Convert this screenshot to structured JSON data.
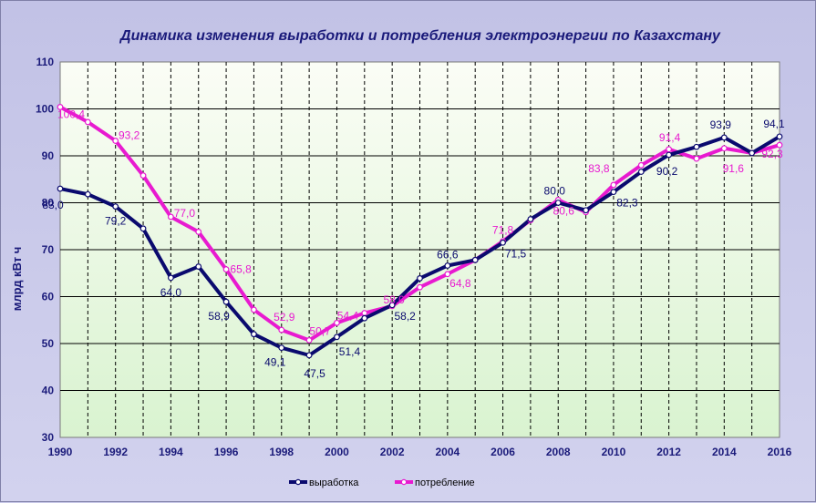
{
  "chart_data": {
    "type": "line",
    "title": "Динамика изменения выработки и потребления электроэнергии по  Казахстану",
    "ylabel": "млрд кВт ч",
    "xlabel": "",
    "ylim": [
      30,
      110
    ],
    "yticks": [
      30,
      40,
      50,
      60,
      70,
      80,
      90,
      100,
      110
    ],
    "xticks": [
      1990,
      1992,
      1994,
      1996,
      1998,
      2000,
      2002,
      2004,
      2006,
      2008,
      2010,
      2012,
      2014,
      2016
    ],
    "grid": true,
    "legend": "bottom",
    "x": [
      1990,
      1991,
      1992,
      1993,
      1994,
      1995,
      1996,
      1997,
      1998,
      1999,
      2000,
      2001,
      2002,
      2003,
      2004,
      2005,
      2006,
      2007,
      2008,
      2009,
      2010,
      2011,
      2012,
      2013,
      2014,
      2015,
      2016
    ],
    "series": [
      {
        "name": "выработка",
        "color": "#0a0a6e",
        "values": [
          83.0,
          81.8,
          79.2,
          74.5,
          64.0,
          66.4,
          58.9,
          52.0,
          49.1,
          47.5,
          51.4,
          55.4,
          58.2,
          63.9,
          66.6,
          67.8,
          71.5,
          76.5,
          80.0,
          78.4,
          82.3,
          86.6,
          90.2,
          91.9,
          93.9,
          90.6,
          94.1
        ]
      },
      {
        "name": "потребление",
        "color": "#e81ad0",
        "values": [
          100.4,
          97.2,
          93.2,
          85.8,
          77.0,
          73.8,
          65.8,
          57.2,
          52.9,
          50.7,
          54.4,
          56.5,
          58.0,
          62.0,
          64.8,
          67.8,
          71.8,
          76.3,
          80.6,
          78.0,
          83.8,
          88.0,
          91.4,
          89.4,
          91.6,
          90.6,
          92.3
        ]
      }
    ],
    "data_labels": [
      {
        "series": 0,
        "x": 1990,
        "text": "83,0"
      },
      {
        "series": 0,
        "x": 1992,
        "text": "79,2"
      },
      {
        "series": 0,
        "x": 1994,
        "text": "64,0"
      },
      {
        "series": 0,
        "x": 1996,
        "text": "58,9"
      },
      {
        "series": 0,
        "x": 1998,
        "text": "49,1"
      },
      {
        "series": 0,
        "x": 1999,
        "text": "47,5"
      },
      {
        "series": 0,
        "x": 2000,
        "text": "51,4"
      },
      {
        "series": 0,
        "x": 2002,
        "text": "58,2"
      },
      {
        "series": 0,
        "x": 2004,
        "text": "66,6"
      },
      {
        "series": 0,
        "x": 2006,
        "text": "71,5"
      },
      {
        "series": 0,
        "x": 2008,
        "text": "80,0"
      },
      {
        "series": 0,
        "x": 2010,
        "text": "82,3"
      },
      {
        "series": 0,
        "x": 2012,
        "text": "90,2"
      },
      {
        "series": 0,
        "x": 2014,
        "text": "93,9"
      },
      {
        "series": 0,
        "x": 2016,
        "text": "94,1"
      },
      {
        "series": 1,
        "x": 1990,
        "text": "100,4"
      },
      {
        "series": 1,
        "x": 1992,
        "text": "93,2"
      },
      {
        "series": 1,
        "x": 1994,
        "text": "77,0"
      },
      {
        "series": 1,
        "x": 1996,
        "text": "65,8"
      },
      {
        "series": 1,
        "x": 1998,
        "text": "52,9"
      },
      {
        "series": 1,
        "x": 1999,
        "text": "50,7"
      },
      {
        "series": 1,
        "x": 2000,
        "text": "54,4"
      },
      {
        "series": 1,
        "x": 2002,
        "text": "58,0"
      },
      {
        "series": 1,
        "x": 2004,
        "text": "64,8"
      },
      {
        "series": 1,
        "x": 2006,
        "text": "71,8"
      },
      {
        "series": 1,
        "x": 2008,
        "text": "80,6"
      },
      {
        "series": 1,
        "x": 2010,
        "text": "83,8"
      },
      {
        "series": 1,
        "x": 2012,
        "text": "91,4"
      },
      {
        "series": 1,
        "x": 2014,
        "text": "91,6"
      },
      {
        "series": 1,
        "x": 2016,
        "text": "92,3"
      }
    ]
  }
}
